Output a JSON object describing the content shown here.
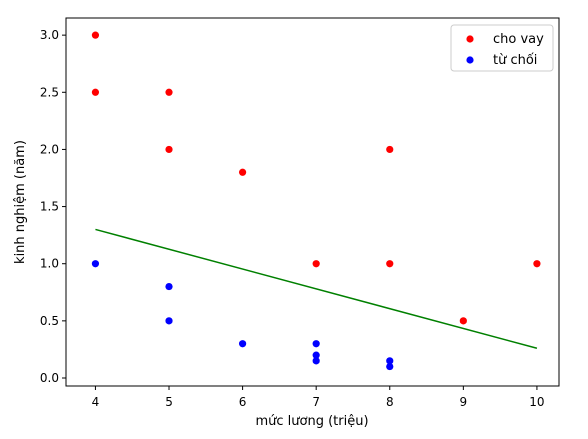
{
  "chart_data": {
    "type": "scatter",
    "xlabel": "mức lương (triệu)",
    "ylabel": "kinh nghiệm (năm)",
    "xlim": [
      3.6,
      10.3
    ],
    "ylim": [
      -0.07,
      3.15
    ],
    "xticks": [
      4,
      5,
      6,
      7,
      8,
      9,
      10
    ],
    "yticks": [
      0.0,
      0.5,
      1.0,
      1.5,
      2.0,
      2.5,
      3.0
    ],
    "xtick_labels": [
      "4",
      "5",
      "6",
      "7",
      "8",
      "9",
      "10"
    ],
    "ytick_labels": [
      "0.0",
      "0.5",
      "1.0",
      "1.5",
      "2.0",
      "2.5",
      "3.0"
    ],
    "legend_position": "top-right",
    "series": [
      {
        "name": "cho vay",
        "color": "#ff0000",
        "points": [
          {
            "x": 4,
            "y": 3.0
          },
          {
            "x": 4,
            "y": 2.5
          },
          {
            "x": 5,
            "y": 2.5
          },
          {
            "x": 5,
            "y": 2.0
          },
          {
            "x": 6,
            "y": 1.8
          },
          {
            "x": 7,
            "y": 1.0
          },
          {
            "x": 8,
            "y": 2.0
          },
          {
            "x": 8,
            "y": 1.0
          },
          {
            "x": 9,
            "y": 0.5
          },
          {
            "x": 10,
            "y": 1.0
          }
        ]
      },
      {
        "name": "từ chối",
        "color": "#0000ff",
        "points": [
          {
            "x": 4,
            "y": 1.0
          },
          {
            "x": 5,
            "y": 0.8
          },
          {
            "x": 5,
            "y": 0.5
          },
          {
            "x": 6,
            "y": 0.3
          },
          {
            "x": 7,
            "y": 0.3
          },
          {
            "x": 7,
            "y": 0.2
          },
          {
            "x": 7,
            "y": 0.15
          },
          {
            "x": 8,
            "y": 0.15
          },
          {
            "x": 8,
            "y": 0.1
          }
        ]
      }
    ],
    "line": {
      "color": "#008000",
      "points": [
        {
          "x": 4,
          "y": 1.3
        },
        {
          "x": 10,
          "y": 0.26
        }
      ]
    }
  }
}
